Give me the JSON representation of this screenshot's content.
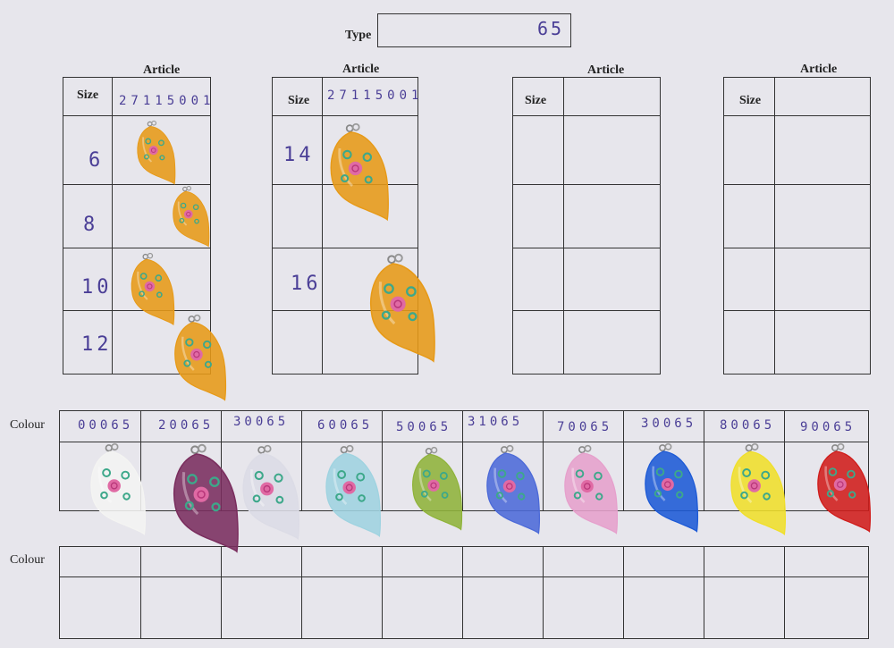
{
  "type_label": "Type",
  "type_value": "65",
  "article_label": "Article",
  "size_label": "Size",
  "colour_label": "Colour",
  "articles": [
    {
      "number": "27115001",
      "sizes": [
        "6",
        "8",
        "10",
        "12"
      ]
    },
    {
      "number": "27115001",
      "sizes": [
        "14",
        "16"
      ]
    },
    {
      "number": "",
      "sizes": []
    },
    {
      "number": "",
      "sizes": []
    }
  ],
  "colour_codes": [
    "00065",
    "20065",
    "30065",
    "60065",
    "50065",
    "31065",
    "70065",
    "30065",
    "80065",
    "90065"
  ],
  "colours": {
    "amber": "#e79a17",
    "white": "#f4f4f2",
    "purple": "#7a2e5e",
    "clear": "#dcdce6",
    "aqua": "#9fd3e0",
    "olive": "#8fb33a",
    "blue": "#4c6ad8",
    "pink": "#e6a0cc",
    "cobalt": "#1d5ad6",
    "yellow": "#f0df2a",
    "red": "#d01c1a"
  }
}
